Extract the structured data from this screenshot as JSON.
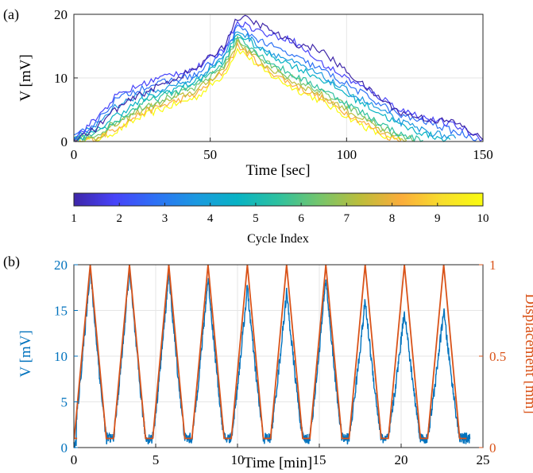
{
  "panels": {
    "a_label": "(a)",
    "b_label": "(b)"
  },
  "colorbar": {
    "label": "Cycle Index",
    "ticks": [
      1,
      2,
      3,
      4,
      5,
      6,
      7,
      8,
      9,
      10
    ],
    "range": [
      1,
      10
    ],
    "colormap": "parula",
    "stops": [
      "#3e26a8",
      "#4743f9",
      "#2d71f5",
      "#1b99e0",
      "#08b3c4",
      "#2ec19f",
      "#75c56c",
      "#bcbd3b",
      "#fbad3b",
      "#f7de2d",
      "#f9fb0e"
    ]
  },
  "chart_data": [
    {
      "id": "a",
      "type": "line",
      "xlabel": "Time [sec]",
      "ylabel": "V [mV]",
      "xlim": [
        0,
        150
      ],
      "ylim": [
        0,
        20
      ],
      "xticks": [
        0,
        50,
        100,
        150
      ],
      "yticks": [
        0,
        10,
        20
      ],
      "grid": true,
      "series": [
        {
          "cycle": 1,
          "color": "#3e26a8",
          "x": [
            0,
            8,
            15,
            25,
            35,
            45,
            55,
            60,
            62,
            70,
            80,
            90,
            100,
            110,
            120,
            130,
            140,
            148,
            150
          ],
          "y": [
            0.3,
            2.0,
            5.0,
            7.5,
            9.5,
            11.5,
            15.0,
            19.5,
            19.5,
            18.0,
            15.5,
            14.5,
            11.0,
            7.5,
            4.5,
            3.5,
            3.0,
            0.8,
            0.3
          ]
        },
        {
          "cycle": 2,
          "color": "#4743f9",
          "x": [
            0,
            8,
            15,
            25,
            35,
            45,
            55,
            60,
            62,
            70,
            80,
            90,
            100,
            110,
            120,
            130,
            140,
            148,
            150
          ],
          "y": [
            0.5,
            3.5,
            7.0,
            9.0,
            10.5,
            11.5,
            14.5,
            19.0,
            18.5,
            17.0,
            16.0,
            12.5,
            10.0,
            7.5,
            5.0,
            3.5,
            2.5,
            0.8,
            0.4
          ]
        },
        {
          "cycle": 3,
          "color": "#2d71f5",
          "x": [
            0,
            8,
            15,
            25,
            35,
            45,
            55,
            60,
            62,
            70,
            80,
            90,
            100,
            110,
            120,
            130,
            140,
            148
          ],
          "y": [
            0.5,
            3.0,
            6.5,
            8.5,
            9.5,
            10.5,
            14.0,
            18.0,
            17.5,
            15.5,
            13.5,
            11.5,
            9.0,
            6.5,
            4.0,
            3.0,
            1.5,
            0.5
          ]
        },
        {
          "cycle": 4,
          "color": "#1b99e0",
          "x": [
            0,
            8,
            15,
            25,
            35,
            45,
            55,
            60,
            62,
            70,
            80,
            90,
            100,
            110,
            120,
            130,
            140
          ],
          "y": [
            0.3,
            2.5,
            5.5,
            7.5,
            8.5,
            10.0,
            13.5,
            17.5,
            17.0,
            14.5,
            12.5,
            10.5,
            8.0,
            5.5,
            3.0,
            1.5,
            0.5
          ]
        },
        {
          "cycle": 5,
          "color": "#08b3c4",
          "x": [
            0,
            8,
            15,
            25,
            35,
            45,
            55,
            60,
            62,
            70,
            80,
            90,
            100,
            110,
            120,
            130,
            138
          ],
          "y": [
            0.3,
            1.5,
            4.0,
            6.5,
            8.0,
            9.5,
            13.0,
            17.0,
            16.5,
            14.0,
            12.0,
            10.0,
            7.5,
            5.0,
            2.5,
            1.0,
            0.3
          ]
        },
        {
          "cycle": 6,
          "color": "#2ec19f",
          "x": [
            0,
            8,
            15,
            25,
            35,
            45,
            55,
            60,
            62,
            70,
            80,
            90,
            100,
            110,
            120,
            128
          ],
          "y": [
            0.3,
            1.0,
            3.0,
            6.0,
            7.5,
            9.0,
            12.5,
            16.5,
            16.0,
            13.0,
            10.5,
            8.5,
            6.0,
            3.5,
            1.0,
            0.2
          ]
        },
        {
          "cycle": 7,
          "color": "#75c56c",
          "x": [
            0,
            8,
            15,
            25,
            35,
            45,
            55,
            60,
            62,
            70,
            80,
            90,
            100,
            110,
            118,
            125
          ],
          "y": [
            0.3,
            1.0,
            3.0,
            5.5,
            7.0,
            8.5,
            12.0,
            16.0,
            15.5,
            12.5,
            10.0,
            8.0,
            5.5,
            3.0,
            1.0,
            0.2
          ]
        },
        {
          "cycle": 8,
          "color": "#bcbd3b",
          "x": [
            0,
            8,
            15,
            25,
            35,
            45,
            55,
            60,
            62,
            70,
            80,
            90,
            100,
            110,
            115,
            122
          ],
          "y": [
            0.2,
            0.5,
            2.5,
            5.0,
            6.5,
            8.0,
            11.5,
            15.5,
            15.0,
            12.0,
            9.5,
            7.5,
            5.0,
            2.5,
            1.0,
            0.2
          ]
        },
        {
          "cycle": 9,
          "color": "#fbad3b",
          "x": [
            0,
            8,
            15,
            25,
            35,
            45,
            55,
            60,
            62,
            70,
            80,
            90,
            100,
            108,
            115,
            120
          ],
          "y": [
            0.2,
            0.5,
            2.0,
            4.5,
            6.0,
            7.5,
            11.0,
            15.0,
            14.5,
            11.5,
            9.0,
            7.0,
            4.5,
            2.5,
            0.8,
            0.2
          ]
        },
        {
          "cycle": 10,
          "color": "#f9fb0e",
          "x": [
            0,
            8,
            15,
            25,
            35,
            45,
            55,
            60,
            62,
            70,
            80,
            90,
            100,
            108,
            115,
            120
          ],
          "y": [
            0.2,
            0.3,
            1.5,
            4.0,
            5.5,
            7.0,
            10.5,
            14.5,
            14.0,
            11.0,
            8.5,
            6.5,
            4.0,
            2.0,
            0.5,
            0.2
          ]
        }
      ]
    },
    {
      "id": "b",
      "type": "line",
      "xlabel": "Time [min]",
      "ylabel": "V [mV]",
      "y2label": "Displacement [mm]",
      "xlim": [
        0,
        25
      ],
      "ylim": [
        0,
        20
      ],
      "y2lim": [
        0,
        1
      ],
      "xticks": [
        0,
        5,
        10,
        15,
        20,
        25
      ],
      "yticks": [
        0,
        5,
        10,
        15,
        20
      ],
      "y2ticks": [
        0,
        0.5,
        1
      ],
      "grid": true,
      "period_min": 2.4,
      "cycles": 10,
      "peak_times_min": [
        1.0,
        3.4,
        5.8,
        8.2,
        10.6,
        13.0,
        15.4,
        17.8,
        20.2,
        22.6
      ],
      "voltage_peaks_mV": [
        19.5,
        19.5,
        19.0,
        18.5,
        17.5,
        17.0,
        18.5,
        16.0,
        15.0,
        15.0
      ],
      "voltage_end_min": 24.2,
      "displacement": {
        "name": "Displacement",
        "color": "#d95319",
        "min_mm": 0.05,
        "max_mm": 1.0,
        "rise_min": 1.0,
        "fall_min": 1.0,
        "hold_min": 0.4,
        "start_min": 0.0,
        "end_min": 24.0
      },
      "voltage": {
        "name": "V",
        "color": "#0072bd",
        "baseline_mV": 1.0
      }
    }
  ]
}
